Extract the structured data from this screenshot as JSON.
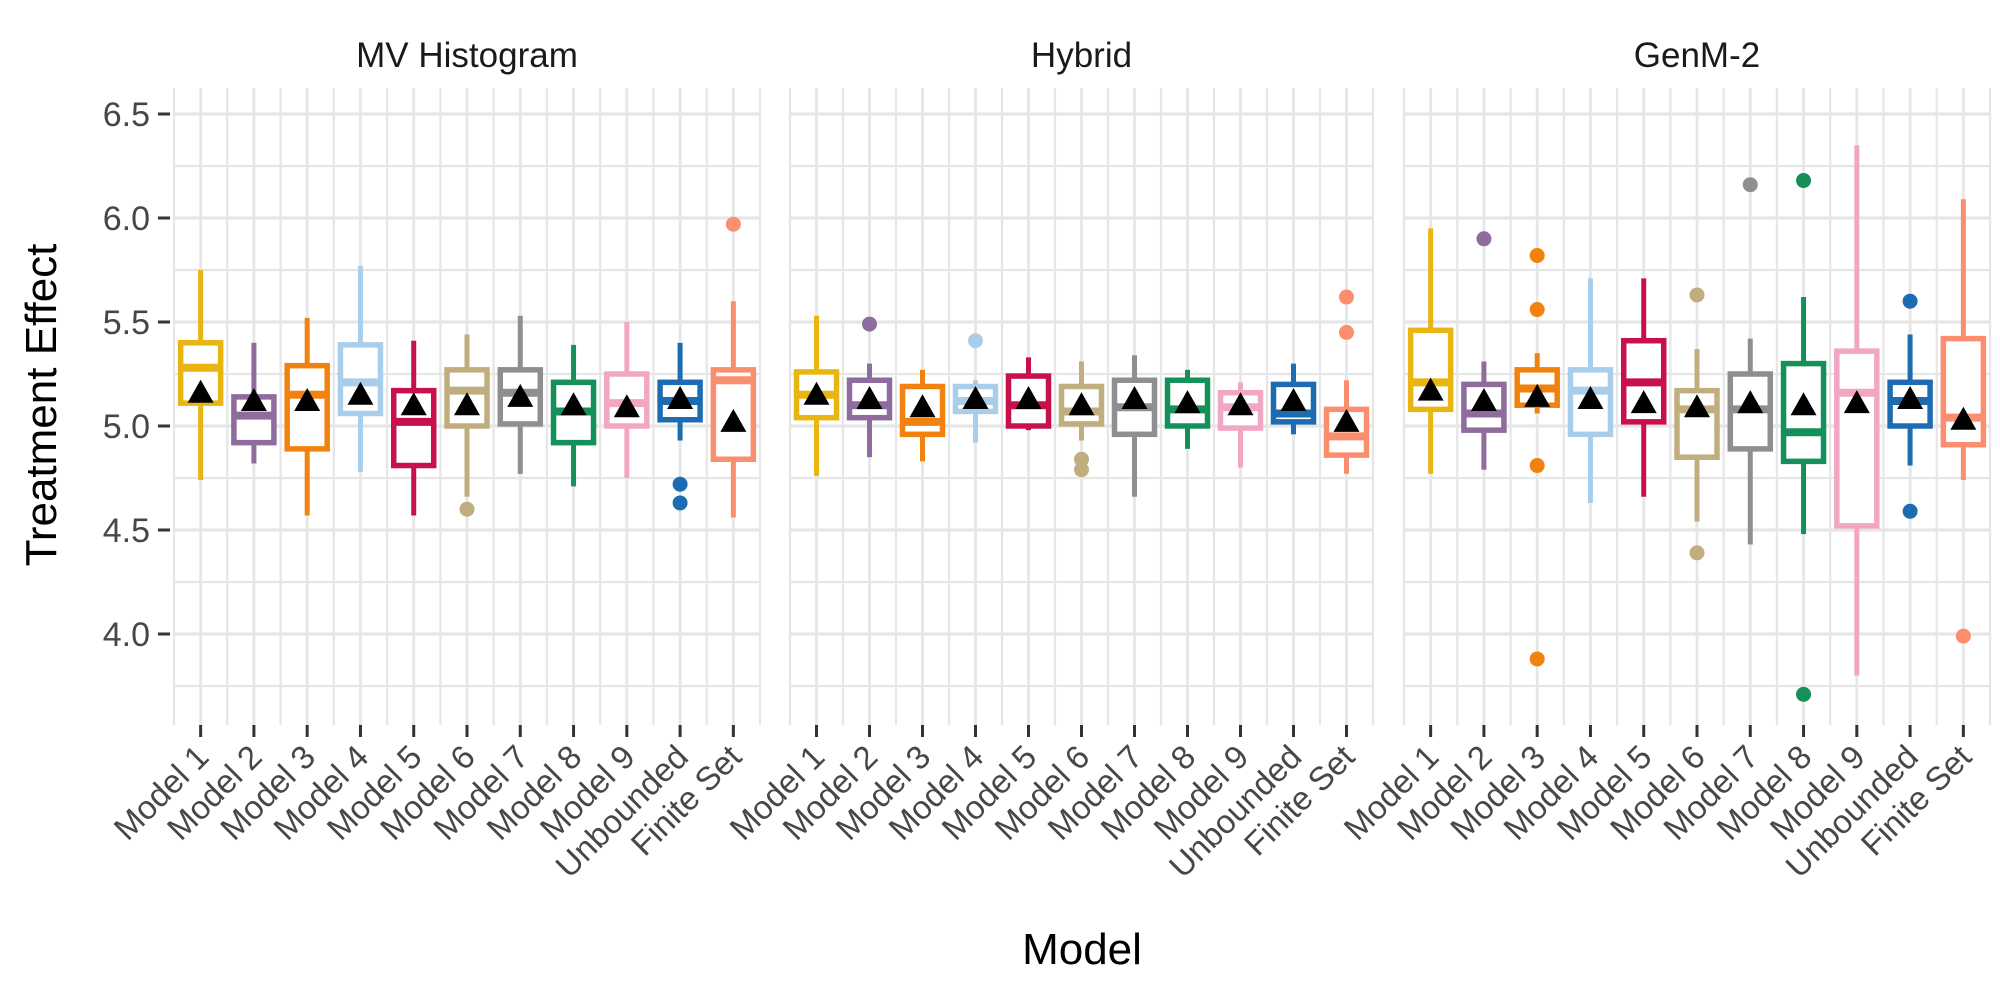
{
  "figure": {
    "ylabel": "Treatment Effect",
    "xlabel": "Model"
  },
  "chart_data": {
    "type": "boxplot",
    "title": "",
    "ylabel": "Treatment Effect",
    "xlabel": "Model",
    "legend": "none",
    "grid": "on",
    "y_axis": {
      "tick_labels": [
        "6.5",
        "6.0",
        "5.5",
        "5.0",
        "4.5",
        "4.0"
      ],
      "tick_values": [
        6.5,
        6.0,
        5.5,
        5.0,
        4.5,
        4.0
      ],
      "minor_values": [
        6.25,
        5.75,
        5.25,
        4.75,
        4.25,
        3.75
      ],
      "range": [
        3.56,
        6.64
      ]
    },
    "categories": [
      "Model 1",
      "Model 2",
      "Model 3",
      "Model 4",
      "Model 5",
      "Model 6",
      "Model 7",
      "Model 8",
      "Model 9",
      "Unbounded",
      "Finite Set"
    ],
    "colors": [
      "#E8B512",
      "#8E6C9E",
      "#F28210",
      "#A9CEEB",
      "#C8104B",
      "#C0AE7E",
      "#8F8F8F",
      "#149159",
      "#F1A7C4",
      "#1D6CB1",
      "#FA8E6E"
    ],
    "mean_marker": "black-triangle",
    "mean_marker_color": "#000000",
    "grid_color": "#E6E6E6",
    "tick_color": "#333333",
    "tick_label_color": "#474747",
    "facet_title_color": "#1A1A1A",
    "facets": [
      {
        "title": "MV Histogram",
        "boxes": [
          {
            "category": "Model 1",
            "low": 4.74,
            "q1": 5.11,
            "median": 5.28,
            "q3": 5.4,
            "high": 5.75,
            "mean": 5.16,
            "outliers": []
          },
          {
            "category": "Model 2",
            "low": 4.82,
            "q1": 4.92,
            "median": 5.05,
            "q3": 5.14,
            "high": 5.4,
            "mean": 5.12,
            "outliers": []
          },
          {
            "category": "Model 3",
            "low": 4.57,
            "q1": 4.89,
            "median": 5.15,
            "q3": 5.29,
            "high": 5.52,
            "mean": 5.12,
            "outliers": []
          },
          {
            "category": "Model 4",
            "low": 4.78,
            "q1": 5.06,
            "median": 5.21,
            "q3": 5.39,
            "high": 5.77,
            "mean": 5.15,
            "outliers": []
          },
          {
            "category": "Model 5",
            "low": 4.57,
            "q1": 4.81,
            "median": 5.02,
            "q3": 5.17,
            "high": 5.41,
            "mean": 5.1,
            "outliers": []
          },
          {
            "category": "Model 6",
            "low": 4.66,
            "q1": 5.0,
            "median": 5.17,
            "q3": 5.27,
            "high": 5.44,
            "mean": 5.1,
            "outliers": [
              4.6
            ]
          },
          {
            "category": "Model 7",
            "low": 4.77,
            "q1": 5.01,
            "median": 5.16,
            "q3": 5.27,
            "high": 5.53,
            "mean": 5.14,
            "outliers": []
          },
          {
            "category": "Model 8",
            "low": 4.71,
            "q1": 4.92,
            "median": 5.07,
            "q3": 5.21,
            "high": 5.39,
            "mean": 5.1,
            "outliers": []
          },
          {
            "category": "Model 9",
            "low": 4.75,
            "q1": 5.0,
            "median": 5.11,
            "q3": 5.25,
            "high": 5.5,
            "mean": 5.09,
            "outliers": []
          },
          {
            "category": "Unbounded",
            "low": 4.93,
            "q1": 5.03,
            "median": 5.12,
            "q3": 5.21,
            "high": 5.4,
            "mean": 5.13,
            "outliers": [
              4.72,
              4.63
            ]
          },
          {
            "category": "Finite Set",
            "low": 4.56,
            "q1": 4.84,
            "median": 5.22,
            "q3": 5.27,
            "high": 5.6,
            "mean": 5.02,
            "outliers": [
              5.97
            ]
          }
        ]
      },
      {
        "title": "Hybrid",
        "boxes": [
          {
            "category": "Model 1",
            "low": 4.76,
            "q1": 5.04,
            "median": 5.15,
            "q3": 5.26,
            "high": 5.53,
            "mean": 5.15,
            "outliers": []
          },
          {
            "category": "Model 2",
            "low": 4.85,
            "q1": 5.04,
            "median": 5.1,
            "q3": 5.22,
            "high": 5.3,
            "mean": 5.13,
            "outliers": [
              5.49
            ]
          },
          {
            "category": "Model 3",
            "low": 4.83,
            "q1": 4.96,
            "median": 5.02,
            "q3": 5.19,
            "high": 5.27,
            "mean": 5.09,
            "outliers": []
          },
          {
            "category": "Model 4",
            "low": 4.92,
            "q1": 5.07,
            "median": 5.12,
            "q3": 5.19,
            "high": 5.22,
            "mean": 5.13,
            "outliers": [
              5.41
            ]
          },
          {
            "category": "Model 5",
            "low": 4.98,
            "q1": 5.0,
            "median": 5.1,
            "q3": 5.24,
            "high": 5.33,
            "mean": 5.13,
            "outliers": []
          },
          {
            "category": "Model 6",
            "low": 4.93,
            "q1": 5.01,
            "median": 5.07,
            "q3": 5.19,
            "high": 5.31,
            "mean": 5.1,
            "outliers": [
              4.84,
              4.79
            ]
          },
          {
            "category": "Model 7",
            "low": 4.66,
            "q1": 4.96,
            "median": 5.09,
            "q3": 5.22,
            "high": 5.34,
            "mean": 5.13,
            "outliers": []
          },
          {
            "category": "Model 8",
            "low": 4.89,
            "q1": 5.0,
            "median": 5.08,
            "q3": 5.22,
            "high": 5.27,
            "mean": 5.11,
            "outliers": []
          },
          {
            "category": "Model 9",
            "low": 4.8,
            "q1": 4.99,
            "median": 5.09,
            "q3": 5.16,
            "high": 5.21,
            "mean": 5.1,
            "outliers": []
          },
          {
            "category": "Unbounded",
            "low": 4.96,
            "q1": 5.02,
            "median": 5.06,
            "q3": 5.2,
            "high": 5.3,
            "mean": 5.12,
            "outliers": []
          },
          {
            "category": "Finite Set",
            "low": 4.77,
            "q1": 4.86,
            "median": 4.95,
            "q3": 5.08,
            "high": 5.22,
            "mean": 5.02,
            "outliers": [
              5.62,
              5.45
            ]
          }
        ]
      },
      {
        "title": "GenM-2",
        "boxes": [
          {
            "category": "Model 1",
            "low": 4.77,
            "q1": 5.08,
            "median": 5.21,
            "q3": 5.46,
            "high": 5.95,
            "mean": 5.17,
            "outliers": []
          },
          {
            "category": "Model 2",
            "low": 4.79,
            "q1": 4.98,
            "median": 5.06,
            "q3": 5.2,
            "high": 5.31,
            "mean": 5.12,
            "outliers": [
              5.9
            ]
          },
          {
            "category": "Model 3",
            "low": 5.06,
            "q1": 5.1,
            "median": 5.18,
            "q3": 5.27,
            "high": 5.35,
            "mean": 5.14,
            "outliers": [
              5.82,
              5.56,
              4.81,
              3.88
            ]
          },
          {
            "category": "Model 4",
            "low": 4.63,
            "q1": 4.96,
            "median": 5.17,
            "q3": 5.27,
            "high": 5.71,
            "mean": 5.13,
            "outliers": []
          },
          {
            "category": "Model 5",
            "low": 4.66,
            "q1": 5.02,
            "median": 5.21,
            "q3": 5.41,
            "high": 5.71,
            "mean": 5.11,
            "outliers": []
          },
          {
            "category": "Model 6",
            "low": 4.54,
            "q1": 4.85,
            "median": 5.08,
            "q3": 5.17,
            "high": 5.37,
            "mean": 5.09,
            "outliers": [
              5.63,
              4.39
            ]
          },
          {
            "category": "Model 7",
            "low": 4.43,
            "q1": 4.89,
            "median": 5.08,
            "q3": 5.25,
            "high": 5.42,
            "mean": 5.11,
            "outliers": [
              6.16
            ]
          },
          {
            "category": "Model 8",
            "low": 4.48,
            "q1": 4.83,
            "median": 4.97,
            "q3": 5.3,
            "high": 5.62,
            "mean": 5.1,
            "outliers": [
              6.18,
              3.71
            ]
          },
          {
            "category": "Model 9",
            "low": 3.8,
            "q1": 4.52,
            "median": 5.16,
            "q3": 5.36,
            "high": 6.35,
            "mean": 5.11,
            "outliers": []
          },
          {
            "category": "Unbounded",
            "low": 4.81,
            "q1": 5.0,
            "median": 5.12,
            "q3": 5.21,
            "high": 5.44,
            "mean": 5.13,
            "outliers": [
              5.6,
              4.59
            ]
          },
          {
            "category": "Finite Set",
            "low": 4.74,
            "q1": 4.91,
            "median": 5.04,
            "q3": 5.42,
            "high": 6.09,
            "mean": 5.03,
            "outliers": [
              3.99
            ]
          }
        ]
      }
    ]
  }
}
